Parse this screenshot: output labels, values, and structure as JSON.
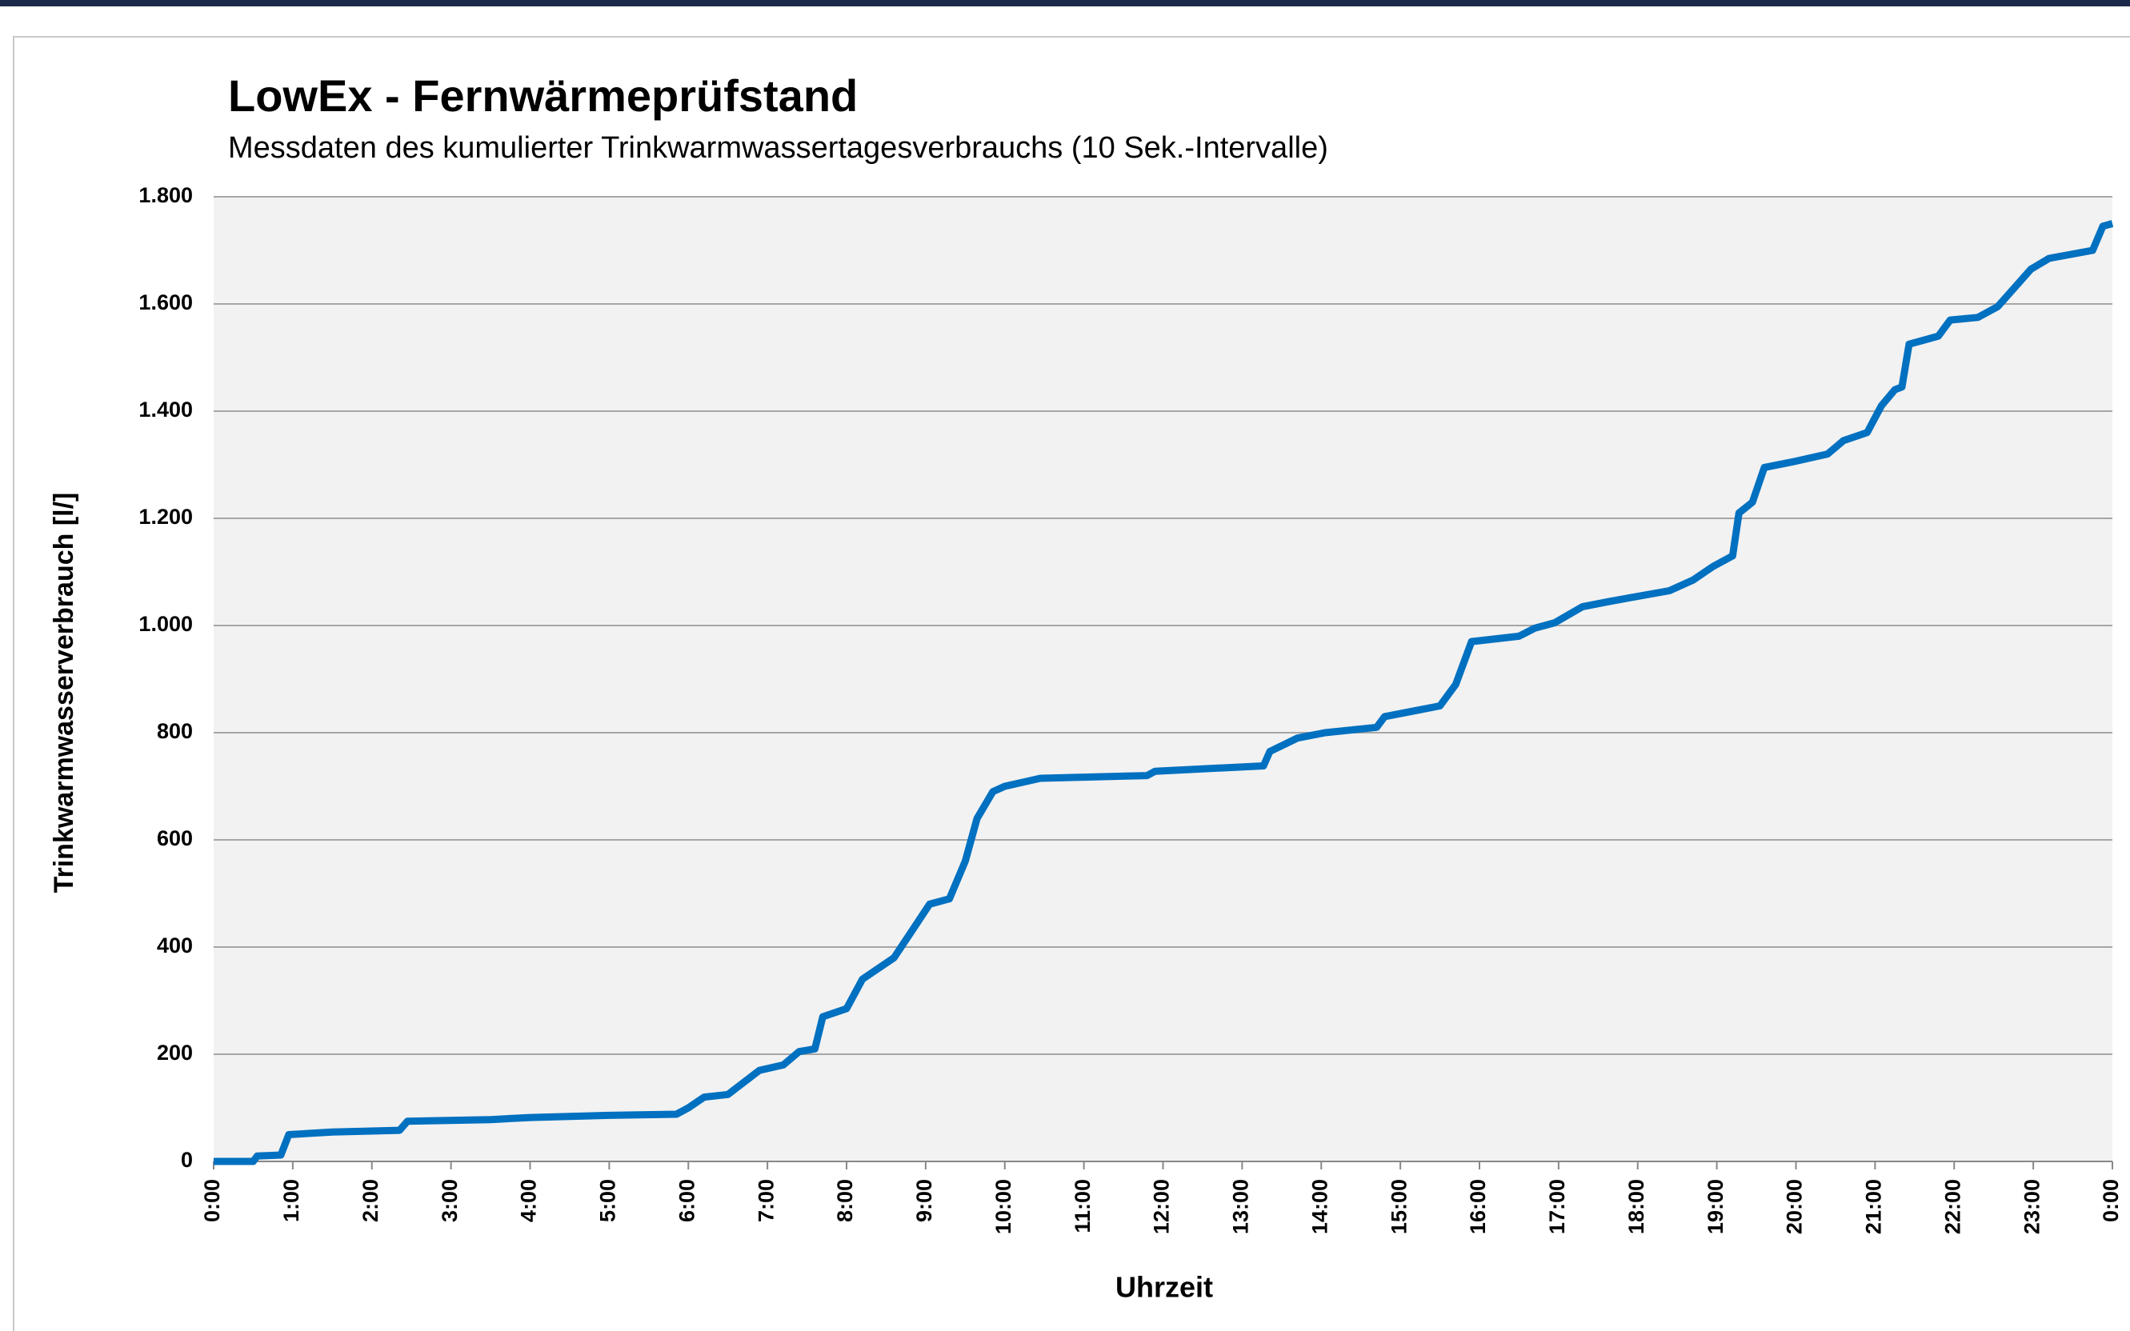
{
  "chart_data": {
    "type": "line",
    "title": "LowEx - Fernwärmeprüfstand",
    "subtitle": "Messdaten des kumulierter Trinkwarmwassertagesverbrauchs (10 Sek.-Intervalle)",
    "x_label": "Uhrzeit",
    "y_label": "Trinkwarmwasserverbrauch [l/]",
    "xlim": [
      0,
      24
    ],
    "xticks": [
      {
        "value": 0,
        "label": "0:00"
      },
      {
        "value": 1,
        "label": "1:00"
      },
      {
        "value": 2,
        "label": "2:00"
      },
      {
        "value": 3,
        "label": "3:00"
      },
      {
        "value": 4,
        "label": "4:00"
      },
      {
        "value": 5,
        "label": "5:00"
      },
      {
        "value": 6,
        "label": "6:00"
      },
      {
        "value": 7,
        "label": "7:00"
      },
      {
        "value": 8,
        "label": "8:00"
      },
      {
        "value": 9,
        "label": "9:00"
      },
      {
        "value": 10,
        "label": "10:00"
      },
      {
        "value": 11,
        "label": "11:00"
      },
      {
        "value": 12,
        "label": "12:00"
      },
      {
        "value": 13,
        "label": "13:00"
      },
      {
        "value": 14,
        "label": "14:00"
      },
      {
        "value": 15,
        "label": "15:00"
      },
      {
        "value": 16,
        "label": "16:00"
      },
      {
        "value": 17,
        "label": "17:00"
      },
      {
        "value": 18,
        "label": "18:00"
      },
      {
        "value": 19,
        "label": "19:00"
      },
      {
        "value": 20,
        "label": "20:00"
      },
      {
        "value": 21,
        "label": "21:00"
      },
      {
        "value": 22,
        "label": "22:00"
      },
      {
        "value": 23,
        "label": "23:00"
      },
      {
        "value": 24,
        "label": "0:00"
      }
    ],
    "ylim": [
      0,
      1800
    ],
    "yticks": [
      0,
      200,
      400,
      600,
      800,
      {
        "value": 1000,
        "label": "1.000"
      },
      {
        "value": 1200,
        "label": "1.200"
      },
      {
        "value": 1400,
        "label": "1.400"
      },
      {
        "value": 1600,
        "label": "1.600"
      },
      {
        "value": 1800,
        "label": "1.800"
      }
    ],
    "grid": true,
    "x": [
      0,
      0.5,
      0.55,
      0.85,
      0.95,
      1.5,
      2.35,
      2.45,
      3.5,
      4.0,
      5.0,
      5.85,
      6.0,
      6.2,
      6.5,
      6.9,
      7.2,
      7.4,
      7.6,
      7.7,
      8.0,
      8.2,
      8.6,
      9.05,
      9.3,
      9.5,
      9.65,
      9.85,
      10.0,
      10.45,
      11.8,
      11.9,
      13.27,
      13.35,
      13.7,
      14.05,
      14.7,
      14.8,
      15.5,
      15.7,
      15.9,
      16.5,
      16.7,
      16.95,
      17.3,
      17.65,
      18.4,
      18.7,
      18.95,
      19.2,
      19.28,
      19.45,
      19.6,
      19.95,
      20.4,
      20.6,
      20.9,
      21.08,
      21.25,
      21.34,
      21.43,
      21.8,
      21.95,
      22.3,
      22.55,
      22.7,
      22.97,
      23.2,
      23.75,
      23.88,
      24
    ],
    "series": [
      {
        "name": "Trinkwarmwasserverbrauch",
        "color": "#0070c0",
        "values": [
          0,
          0,
          10,
          12,
          50,
          55,
          58,
          75,
          78,
          82,
          86,
          88,
          100,
          120,
          125,
          170,
          180,
          205,
          210,
          270,
          285,
          340,
          380,
          480,
          490,
          560,
          640,
          690,
          700,
          715,
          720,
          728,
          738,
          765,
          790,
          800,
          810,
          830,
          850,
          890,
          970,
          980,
          995,
          1005,
          1035,
          1045,
          1065,
          1085,
          1110,
          1130,
          1210,
          1230,
          1295,
          1305,
          1320,
          1345,
          1360,
          1410,
          1440,
          1445,
          1525,
          1540,
          1570,
          1575,
          1595,
          1620,
          1665,
          1685,
          1700,
          1745,
          1750
        ]
      }
    ]
  }
}
